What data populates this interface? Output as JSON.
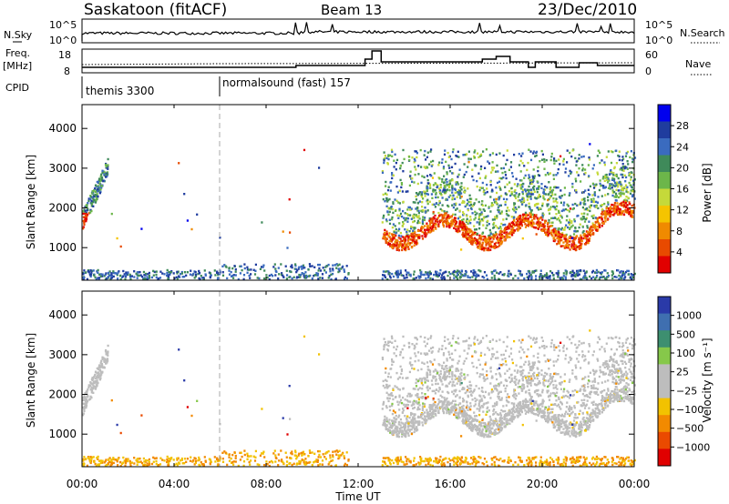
{
  "header": {
    "title": "Saskatoon (fitACF)",
    "beam": "Beam 13",
    "date": "23/Dec/2010"
  },
  "noise_panel": {
    "left_label": "N.Sky",
    "right_label": "N.Search",
    "left_ticks": [
      "10^5",
      "10^0"
    ],
    "right_ticks": [
      "10^5",
      "10^0"
    ]
  },
  "freq_panel": {
    "left_label_1": "Freq.",
    "left_label_2": "[MHz]",
    "right_label": "Nave",
    "left_ticks": [
      "18",
      "8"
    ],
    "right_ticks": [
      "60",
      "0"
    ]
  },
  "cpid_panel": {
    "label": "CPID",
    "modes": [
      {
        "name": "themis 3300",
        "start_hour": 0
      },
      {
        "name": "normalsound (fast) 157",
        "start_hour": 6
      }
    ]
  },
  "time_axis": {
    "label": "Time UT",
    "ticks": [
      "00:00",
      "04:00",
      "08:00",
      "12:00",
      "16:00",
      "20:00",
      "00:00"
    ]
  },
  "chart_data": [
    {
      "type": "heatmap",
      "name": "power-panel",
      "ylabel": "Slant Range [km]",
      "xlim_hours": [
        0,
        24
      ],
      "ylim_km": [
        180,
        4600
      ],
      "yticks": [
        "1000",
        "2000",
        "3000",
        "4000"
      ],
      "colorbar": {
        "label": "Power [dB]",
        "ticks": [
          "28",
          "24",
          "20",
          "16",
          "12",
          "8",
          "4"
        ],
        "colors": [
          "#0000ee",
          "#1f3c9e",
          "#3a6bbf",
          "#3f8a5a",
          "#6cb64a",
          "#c5d93a",
          "#f5c400",
          "#f08a00",
          "#e84a00",
          "#e10000"
        ]
      }
    },
    {
      "type": "heatmap",
      "name": "velocity-panel",
      "ylabel": "Slant Range [km]",
      "xlim_hours": [
        0,
        24
      ],
      "ylim_km": [
        180,
        4600
      ],
      "yticks": [
        "1000",
        "2000",
        "3000",
        "4000"
      ],
      "colorbar": {
        "label": "Velocity [m s⁻¹]",
        "ticks": [
          "1000",
          "500",
          "100",
          "25",
          "−25",
          "−100",
          "−500",
          "−1000"
        ],
        "colors": [
          "#2a3aa8",
          "#3f6fb0",
          "#3d8f70",
          "#86c84a",
          "#bdbdbd",
          "#bdbdbd",
          "#f2c200",
          "#f28a00",
          "#ea4a00",
          "#e00000"
        ]
      }
    }
  ]
}
